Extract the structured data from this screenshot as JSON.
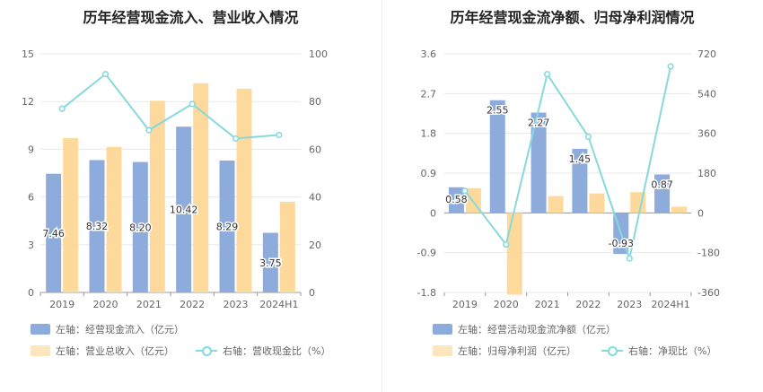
{
  "colors": {
    "bar1": "#8eacdb",
    "bar2": "#fdd99b",
    "line": "#86d9dc"
  },
  "chart_data": [
    {
      "type": "bar",
      "title": "历年经营现金流入、营业收入情况",
      "categories": [
        "2019",
        "2020",
        "2021",
        "2022",
        "2023",
        "2024H1"
      ],
      "left_axis": {
        "ticks": [
          "0",
          "3",
          "6",
          "9",
          "12",
          "15"
        ],
        "ylim": [
          0,
          15
        ]
      },
      "right_axis": {
        "ticks": [
          "0",
          "20",
          "40",
          "60",
          "80",
          "100"
        ],
        "ylim": [
          0,
          100
        ]
      },
      "series": [
        {
          "name": "左轴：经营现金流入（亿元）",
          "axis": "left",
          "kind": "bar",
          "values": [
            7.46,
            8.32,
            8.2,
            10.42,
            8.29,
            3.75
          ],
          "labels": [
            "7.46",
            "8.32",
            "8.20",
            "10.42",
            "8.29",
            "3.75"
          ]
        },
        {
          "name": "左轴：营业总收入（亿元）",
          "axis": "left",
          "kind": "bar",
          "values": [
            9.7,
            9.15,
            12.05,
            13.15,
            12.8,
            5.7
          ]
        },
        {
          "name": "右轴：营收现金比（%）",
          "axis": "right",
          "kind": "line",
          "values": [
            77,
            91.5,
            68,
            79,
            64.5,
            66
          ]
        }
      ]
    },
    {
      "type": "bar",
      "title": "历年经营现金流净额、归母净利润情况",
      "categories": [
        "2019",
        "2020",
        "2021",
        "2022",
        "2023",
        "2024H1"
      ],
      "left_axis": {
        "ticks": [
          "-1.8",
          "-0.9",
          "0",
          "0.9",
          "1.8",
          "2.7",
          "3.6"
        ],
        "ylim": [
          -1.8,
          3.6
        ]
      },
      "right_axis": {
        "ticks": [
          "-360",
          "-180",
          "0",
          "180",
          "360",
          "540",
          "720"
        ],
        "ylim": [
          -360,
          720
        ]
      },
      "series": [
        {
          "name": "左轴：经营活动现金流净额（亿元）",
          "axis": "left",
          "kind": "bar",
          "values": [
            0.58,
            2.55,
            2.27,
            1.45,
            -0.93,
            0.87
          ],
          "labels": [
            "0.58",
            "2.55",
            "2.27",
            "1.45",
            "-0.93",
            "0.87"
          ]
        },
        {
          "name": "左轴：归母净利润（亿元）",
          "axis": "left",
          "kind": "bar",
          "values": [
            0.56,
            -1.85,
            0.38,
            0.44,
            0.47,
            0.14
          ]
        },
        {
          "name": "右轴：净现比（%）",
          "axis": "right",
          "kind": "line",
          "values": [
            100,
            -143,
            628,
            345,
            -206,
            663
          ]
        }
      ]
    }
  ]
}
